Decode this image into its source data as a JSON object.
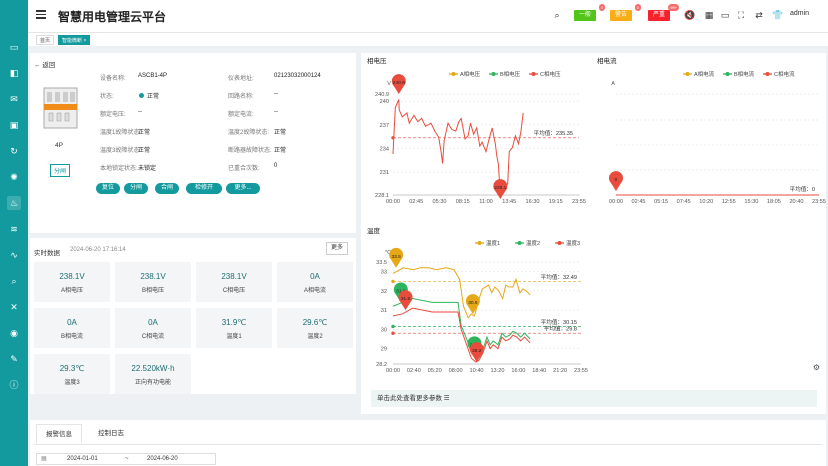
{
  "app": {
    "title": "智慧用电管理云平台",
    "user": "admin"
  },
  "alerts": [
    {
      "label": "一般",
      "color": "#52c41a"
    },
    {
      "label": "警告",
      "color": "#faad14"
    },
    {
      "label": "严重",
      "color": "#f5222d"
    }
  ],
  "tabs": [
    {
      "label": "首页"
    },
    {
      "label": "智能微断"
    }
  ],
  "sidebar_icons": [
    "monitor-icon",
    "dashboard-icon",
    "alarm-icon",
    "screen-icon",
    "refresh-icon",
    "bulb-icon",
    "fire-icon",
    "layers-icon",
    "wave-icon",
    "search-icon",
    "tools-icon",
    "location-icon",
    "report-icon",
    "info-icon"
  ],
  "device": {
    "back": "返回",
    "model_caption": "4P",
    "open_tag": "分闸",
    "fields": [
      {
        "k": "设备名称:",
        "v": "ASCB1-4P"
      },
      {
        "k": "仪表地址:",
        "v": "02123032000124"
      },
      {
        "k": "状态:",
        "v": "正常"
      },
      {
        "k": "回路名称:",
        "v": "--"
      },
      {
        "k": "额定电压:",
        "v": "--"
      },
      {
        "k": "额定电流:",
        "v": "--"
      },
      {
        "k": "温度1故障状态:",
        "v": "正常"
      },
      {
        "k": "温度2故障状态:",
        "v": "正常"
      },
      {
        "k": "温度3故障状态:",
        "v": "正常"
      },
      {
        "k": "断路器故障状态:",
        "v": "正常"
      },
      {
        "k": "本地锁定状态:",
        "v": "未锁定"
      },
      {
        "k": "已重合次数:",
        "v": "0"
      }
    ],
    "buttons": [
      "复位",
      "分闸",
      "合闸",
      "检修开",
      "更多..."
    ]
  },
  "realtime": {
    "title": "实时数据",
    "time": "2024-06-20 17:16:14",
    "more": "更多",
    "items": [
      {
        "value": "238.1V",
        "name": "A相电压"
      },
      {
        "value": "238.1V",
        "name": "B相电压"
      },
      {
        "value": "238.1V",
        "name": "C相电压"
      },
      {
        "value": "0A",
        "name": "A相电流"
      },
      {
        "value": "0A",
        "name": "B相电流"
      },
      {
        "value": "0A",
        "name": "C相电流"
      },
      {
        "value": "31.9℃",
        "name": "温度1"
      },
      {
        "value": "29.6℃",
        "name": "温度2"
      },
      {
        "value": "29.3℃",
        "name": "温度3"
      },
      {
        "value": "22.520kW·h",
        "name": "正向有功电能"
      }
    ]
  },
  "more_params": "单击此处查看更多参数",
  "bottom_tabs": [
    "报警信息",
    "控制日志"
  ],
  "date_range": {
    "start": "2024-01-01",
    "sep": "~",
    "end": "2024-06-20"
  },
  "chart_data": [
    {
      "type": "line",
      "title": "相电压",
      "ylabel": "V",
      "ylim": [
        228.1,
        240.9
      ],
      "yticks": [
        "240.9",
        "240",
        "237",
        "234",
        "231",
        "228.1"
      ],
      "xticks": [
        "00:00",
        "02:45",
        "05:30",
        "08:15",
        "11:00",
        "13:45",
        "16:30",
        "19:15",
        "23:55"
      ],
      "series": [
        {
          "name": "A相电压",
          "color": "#e6a817"
        },
        {
          "name": "B相电压",
          "color": "#2db55d"
        },
        {
          "name": "C相电压",
          "color": "#e84c3d"
        }
      ],
      "max": "240.9",
      "min": "228.1",
      "avg_label": "平均值：235.35",
      "avg": 235.35,
      "line": [
        [
          0,
          233.3
        ],
        [
          0.3,
          239.2
        ],
        [
          0.75,
          240.2
        ],
        [
          0.8,
          238.9
        ],
        [
          1.2,
          238.0
        ],
        [
          1.8,
          238.5
        ],
        [
          2.1,
          237.2
        ],
        [
          2.7,
          238.2
        ],
        [
          3.2,
          237.4
        ],
        [
          3.7,
          237.8
        ],
        [
          4.2,
          236.8
        ],
        [
          4.9,
          237.2
        ],
        [
          5.4,
          236.2
        ],
        [
          5.9,
          235.4
        ],
        [
          6.2,
          233.6
        ],
        [
          6.4,
          232.1
        ],
        [
          6.6,
          235.0
        ],
        [
          7.1,
          237.2
        ],
        [
          7.6,
          236.4
        ],
        [
          8.1,
          236.2
        ],
        [
          8.5,
          237.4
        ],
        [
          8.8,
          237.8
        ],
        [
          9.3,
          235.2
        ],
        [
          9.7,
          235.6
        ],
        [
          10.0,
          237.2
        ],
        [
          10.4,
          235.8
        ],
        [
          10.8,
          236.6
        ],
        [
          11.2,
          234.3
        ],
        [
          11.5,
          234.8
        ],
        [
          12.0,
          233.6
        ],
        [
          12.4,
          235.2
        ],
        [
          12.8,
          236.6
        ],
        [
          13.2,
          234.6
        ],
        [
          13.4,
          233.0
        ],
        [
          13.6,
          232.0
        ],
        [
          13.8,
          228.8
        ],
        [
          14.0,
          229.3
        ],
        [
          14.4,
          229.2
        ],
        [
          14.8,
          229.5
        ],
        [
          15.0,
          233.6
        ],
        [
          15.4,
          234.1
        ],
        [
          15.8,
          235.6
        ],
        [
          16.2,
          234.6
        ],
        [
          16.5,
          236.1
        ],
        [
          16.8,
          238.5
        ]
      ]
    },
    {
      "type": "line",
      "title": "相电流",
      "ylabel": "A",
      "xticks": [
        "00:00",
        "02:45",
        "05:15",
        "07:45",
        "10:20",
        "12:55",
        "15:30",
        "18:05",
        "20:40",
        "23:55"
      ],
      "series": [
        {
          "name": "A相电流",
          "color": "#e6a817"
        },
        {
          "name": "B相电流",
          "color": "#2db55d"
        },
        {
          "name": "C相电流",
          "color": "#e84c3d"
        }
      ],
      "max": "0",
      "avg_label": "平均值：0",
      "avg": 0
    },
    {
      "type": "line",
      "title": "温度",
      "ylabel": "℃",
      "ylim": [
        28.2,
        33.5
      ],
      "yticks": [
        "33.5",
        "33",
        "32",
        "31",
        "30",
        "29",
        "28.2"
      ],
      "xticks": [
        "00:00",
        "02:40",
        "05:20",
        "08:00",
        "10:40",
        "13:20",
        "16:00",
        "18:40",
        "21:20",
        "23:55"
      ],
      "series": [
        {
          "name": "温度1",
          "color": "#e6a817"
        },
        {
          "name": "温度2",
          "color": "#2db55d"
        },
        {
          "name": "温度3",
          "color": "#e84c3d"
        }
      ],
      "pins": [
        "33.5",
        "30.6",
        "31.6",
        "31.5",
        "28.4",
        "28.2"
      ],
      "avgs": [
        {
          "label": "平均值：32.49",
          "v": 32.49
        },
        {
          "label": "平均值：30.15",
          "v": 30.15
        },
        {
          "label": "平均值：29.8",
          "v": 29.8
        }
      ],
      "t1": [
        [
          0,
          32.9
        ],
        [
          1.3,
          33.2
        ],
        [
          2.6,
          33.1
        ],
        [
          3.5,
          33.2
        ],
        [
          4.6,
          33.2
        ],
        [
          5.5,
          33.1
        ],
        [
          6.8,
          33.2
        ],
        [
          7.8,
          33.1
        ],
        [
          8.5,
          32.6
        ],
        [
          9.0,
          31.2
        ],
        [
          9.6,
          30.6
        ],
        [
          10.0,
          30.8
        ],
        [
          10.4,
          30.7
        ],
        [
          11.0,
          31.6
        ],
        [
          11.4,
          32.1
        ],
        [
          11.8,
          32.2
        ],
        [
          12.2,
          32.3
        ],
        [
          12.6,
          31.9
        ],
        [
          13.0,
          32.2
        ],
        [
          13.5,
          32.0
        ],
        [
          14.0,
          31.6
        ],
        [
          14.4,
          32.3
        ],
        [
          14.8,
          32.2
        ],
        [
          15.3,
          32.2
        ],
        [
          15.7,
          32.6
        ],
        [
          16.2,
          31.9
        ],
        [
          16.6,
          32.1
        ],
        [
          17.0,
          32.0
        ],
        [
          17.5,
          31.8
        ]
      ],
      "t2": [
        [
          0,
          31.2
        ],
        [
          1.2,
          31.4
        ],
        [
          2.5,
          31.6
        ],
        [
          3.8,
          31.5
        ],
        [
          5.0,
          31.4
        ],
        [
          6.2,
          31.4
        ],
        [
          7.4,
          31.4
        ],
        [
          8.3,
          31.4
        ],
        [
          8.7,
          30.2
        ],
        [
          9.4,
          29.5
        ],
        [
          10.0,
          28.8
        ],
        [
          10.6,
          28.6
        ],
        [
          11.0,
          28.6
        ],
        [
          11.5,
          29.0
        ],
        [
          12.0,
          29.6
        ],
        [
          12.4,
          29.2
        ],
        [
          12.8,
          29.4
        ],
        [
          13.4,
          29.2
        ],
        [
          13.9,
          29.8
        ],
        [
          14.4,
          29.6
        ],
        [
          14.9,
          29.7
        ],
        [
          15.3,
          29.9
        ],
        [
          15.8,
          29.8
        ],
        [
          16.3,
          29.6
        ],
        [
          16.8,
          29.8
        ],
        [
          17.5,
          29.5
        ]
      ],
      "t3": [
        [
          0,
          30.7
        ],
        [
          1.2,
          30.8
        ],
        [
          2.5,
          31.1
        ],
        [
          3.8,
          31.0
        ],
        [
          5.0,
          30.9
        ],
        [
          6.2,
          30.9
        ],
        [
          7.4,
          30.9
        ],
        [
          8.3,
          30.9
        ],
        [
          8.7,
          30.0
        ],
        [
          9.4,
          29.2
        ],
        [
          10.0,
          28.5
        ],
        [
          10.6,
          28.3
        ],
        [
          11.0,
          28.4
        ],
        [
          11.5,
          28.8
        ],
        [
          12.0,
          29.4
        ],
        [
          12.4,
          29.0
        ],
        [
          12.8,
          29.2
        ],
        [
          13.4,
          29.0
        ],
        [
          13.9,
          29.6
        ],
        [
          14.4,
          29.4
        ],
        [
          14.9,
          29.5
        ],
        [
          15.3,
          29.7
        ],
        [
          15.8,
          29.6
        ],
        [
          16.3,
          29.4
        ],
        [
          16.8,
          29.6
        ],
        [
          17.5,
          29.3
        ]
      ]
    }
  ]
}
